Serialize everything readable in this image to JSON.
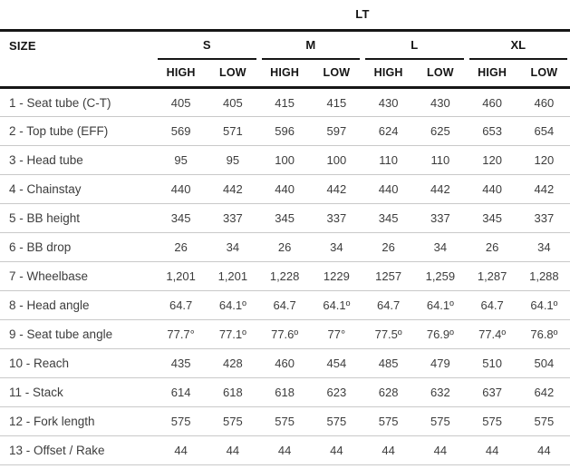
{
  "chart_data": {
    "type": "table",
    "title": "LT",
    "row_header": "SIZE",
    "column_groups": [
      "S",
      "M",
      "L",
      "XL"
    ],
    "sub_columns": [
      "HIGH",
      "LOW"
    ],
    "rows": [
      {
        "label": "1 - Seat tube (C-T)",
        "values": [
          "405",
          "405",
          "415",
          "415",
          "430",
          "430",
          "460",
          "460"
        ]
      },
      {
        "label": "2 - Top tube (EFF)",
        "values": [
          "569",
          "571",
          "596",
          "597",
          "624",
          "625",
          "653",
          "654"
        ]
      },
      {
        "label": "3 - Head tube",
        "values": [
          "95",
          "95",
          "100",
          "100",
          "110",
          "110",
          "120",
          "120"
        ]
      },
      {
        "label": "4 - Chainstay",
        "values": [
          "440",
          "442",
          "440",
          "442",
          "440",
          "442",
          "440",
          "442"
        ]
      },
      {
        "label": "5 - BB height",
        "values": [
          "345",
          "337",
          "345",
          "337",
          "345",
          "337",
          "345",
          "337"
        ]
      },
      {
        "label": "6 - BB drop",
        "values": [
          "26",
          "34",
          "26",
          "34",
          "26",
          "34",
          "26",
          "34"
        ]
      },
      {
        "label": "7 - Wheelbase",
        "values": [
          "1,201",
          "1,201",
          "1,228",
          "1229",
          "1257",
          "1,259",
          "1,287",
          "1,288"
        ]
      },
      {
        "label": "8 - Head angle",
        "values": [
          "64.7",
          "64.1º",
          "64.7",
          "64.1º",
          "64.7",
          "64.1º",
          "64.7",
          "64.1º"
        ]
      },
      {
        "label": "9 - Seat tube angle",
        "values": [
          "77.7°",
          "77.1º",
          "77.6º",
          "77°",
          "77.5º",
          "76.9º",
          "77.4º",
          "76.8º"
        ]
      },
      {
        "label": "10 - Reach",
        "values": [
          "435",
          "428",
          "460",
          "454",
          "485",
          "479",
          "510",
          "504"
        ]
      },
      {
        "label": "11 - Stack",
        "values": [
          "614",
          "618",
          "618",
          "623",
          "628",
          "632",
          "637",
          "642"
        ]
      },
      {
        "label": "12 - Fork length",
        "values": [
          "575",
          "575",
          "575",
          "575",
          "575",
          "575",
          "575",
          "575"
        ]
      },
      {
        "label": "13 - Offset / Rake",
        "values": [
          "44",
          "44",
          "44",
          "44",
          "44",
          "44",
          "44",
          "44"
        ]
      }
    ]
  },
  "colors": {
    "background": "#ffffff",
    "header_text": "#141414",
    "data_text": "#3d3d3d",
    "heavy_rule": "#161616",
    "light_rule": "#c9c9c9"
  }
}
